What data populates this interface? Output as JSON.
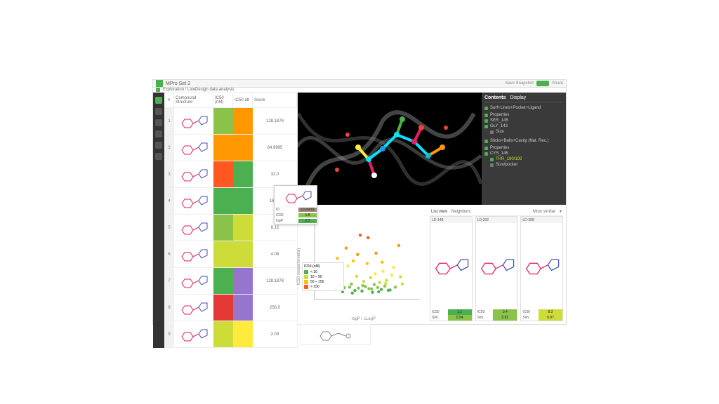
{
  "titlebar": {
    "title": "MPro Set 2",
    "save_label": "Save Snapshot",
    "share_label": "Share"
  },
  "breadcrumb": {
    "text": "Exploration / LiveDesign data analysis"
  },
  "sidebar": {
    "items": [
      "home",
      "grid",
      "scatter",
      "viewer",
      "filter",
      "settings",
      "more"
    ]
  },
  "table": {
    "columns": [
      "#",
      "Compound Structure",
      "IC50 (nM)",
      "IC50 alt",
      "Score"
    ],
    "rows": [
      {
        "idx": "1",
        "h1": "#8bc34a",
        "h2": "#ff9800",
        "val": "128.1878"
      },
      {
        "idx": "2",
        "h1": "#ff9800",
        "h2": "#ff9800",
        "val": "64.9895"
      },
      {
        "idx": "3",
        "h1": "#ff5722",
        "h2": "#4caf50",
        "val": "32.0"
      },
      {
        "idx": "4",
        "h1": "#4caf50",
        "h2": "#4caf50",
        "val": "16.25"
      },
      {
        "idx": "5",
        "h1": "#8bc34a",
        "h2": "#cddc39",
        "val": "8.12"
      },
      {
        "idx": "6",
        "h1": "#cddc39",
        "h2": "#cddc39",
        "val": "4.06"
      },
      {
        "idx": "7",
        "h1": "#4caf50",
        "h2": "#9575cd",
        "val": "128.1878"
      },
      {
        "idx": "8",
        "h1": "#e53935",
        "h2": "#9575cd",
        "val": "256.0"
      },
      {
        "idx": "9",
        "h1": "#cddc39",
        "h2": "#ffeb3b",
        "val": "2.03"
      }
    ]
  },
  "viewer_panel": {
    "tab_contents": "Contents",
    "tab_display": "Display",
    "group1": {
      "label": "Surf+Lines+Pocket+Ligand",
      "children": [
        {
          "label": "Properties",
          "on": true
        },
        {
          "label": "SER_145",
          "on": true
        },
        {
          "label": "GLY_143",
          "on": true
        },
        {
          "label": "Size",
          "on": false,
          "indent": true
        }
      ]
    },
    "group2": {
      "label": "Sticks+Balls+Cavity (Nat. Rec.)",
      "children": [
        {
          "label": "Properties",
          "on": true
        },
        {
          "label": "CYS_145",
          "on": true
        },
        {
          "label": "THR_190/192",
          "on": true,
          "indent": true,
          "yellow": true
        },
        {
          "label": "Size/pocket",
          "on": false,
          "indent": true
        }
      ]
    }
  },
  "hover_card": {
    "rows": [
      {
        "k": "ID",
        "v": "LD-0419",
        "c": "#a1887f"
      },
      {
        "k": "IC50",
        "v": "1.8",
        "c": "#8bc34a"
      },
      {
        "k": "logP",
        "v": "2.3",
        "c": "#4caf50"
      }
    ]
  },
  "scatter": {
    "type": "scatter",
    "xlabel": "logP / cLogP",
    "ylabel": "IC50 (experimental)",
    "xlim": [
      0,
      6
    ],
    "ylim": [
      0,
      300
    ],
    "background": "#ffffff",
    "point_colors": [
      "#4caf50",
      "#8bc34a",
      "#cddc39",
      "#ffeb3b",
      "#ffc107",
      "#ff9800",
      "#ff5722"
    ],
    "points": [
      [
        1.2,
        40,
        0
      ],
      [
        1.4,
        55,
        0
      ],
      [
        1.5,
        120,
        3
      ],
      [
        1.6,
        30,
        0
      ],
      [
        1.8,
        200,
        5
      ],
      [
        2.0,
        48,
        1
      ],
      [
        2.1,
        60,
        1
      ],
      [
        2.2,
        150,
        4
      ],
      [
        2.3,
        35,
        0
      ],
      [
        2.4,
        90,
        2
      ],
      [
        2.5,
        44,
        1
      ],
      [
        2.6,
        250,
        6
      ],
      [
        2.7,
        33,
        0
      ],
      [
        2.8,
        70,
        2
      ],
      [
        2.9,
        50,
        1
      ],
      [
        3.0,
        140,
        4
      ],
      [
        3.1,
        42,
        1
      ],
      [
        3.2,
        85,
        2
      ],
      [
        3.3,
        28,
        0
      ],
      [
        3.4,
        58,
        1
      ],
      [
        3.5,
        180,
        5
      ],
      [
        3.6,
        47,
        1
      ],
      [
        3.7,
        66,
        2
      ],
      [
        3.8,
        39,
        0
      ],
      [
        3.9,
        110,
        3
      ],
      [
        4.0,
        52,
        1
      ],
      [
        4.1,
        74,
        2
      ],
      [
        4.2,
        36,
        0
      ],
      [
        4.4,
        95,
        3
      ],
      [
        4.6,
        48,
        1
      ],
      [
        4.8,
        210,
        5
      ],
      [
        5.0,
        60,
        2
      ],
      [
        1.1,
        80,
        2
      ],
      [
        1.3,
        160,
        4
      ],
      [
        1.7,
        46,
        1
      ],
      [
        1.9,
        130,
        3
      ],
      [
        2.15,
        25,
        0
      ],
      [
        2.45,
        175,
        5
      ],
      [
        2.75,
        54,
        1
      ],
      [
        3.05,
        240,
        6
      ],
      [
        3.25,
        41,
        1
      ],
      [
        3.45,
        100,
        3
      ],
      [
        3.65,
        30,
        0
      ],
      [
        3.85,
        145,
        4
      ],
      [
        4.05,
        62,
        2
      ],
      [
        4.3,
        37,
        0
      ],
      [
        4.5,
        125,
        3
      ],
      [
        4.9,
        88,
        2
      ]
    ],
    "legend": {
      "title": "IC50 (nM)",
      "items": [
        {
          "c": "#4caf50",
          "t": "< 10"
        },
        {
          "c": "#cddc39",
          "t": "10 – 50"
        },
        {
          "c": "#ffc107",
          "t": "50 – 150"
        },
        {
          "c": "#ff5722",
          "t": "> 150"
        }
      ]
    }
  },
  "cards_head": {
    "tab1": "List view",
    "tab2": "Neighbors",
    "sort": "Most similar"
  },
  "cards": [
    {
      "title": "LD-148",
      "rows": [
        {
          "k": "IC50",
          "v": "1.1",
          "c": "#4caf50"
        },
        {
          "k": "Sim.",
          "v": "0.94",
          "c": "#8bc34a"
        }
      ]
    },
    {
      "title": "LD-202",
      "rows": [
        {
          "k": "IC50",
          "v": "3.4",
          "c": "#8bc34a"
        },
        {
          "k": "Sim.",
          "v": "0.91",
          "c": "#8bc34a"
        }
      ]
    },
    {
      "title": "LD-388",
      "rows": [
        {
          "k": "IC50",
          "v": "8.2",
          "c": "#cddc39"
        },
        {
          "k": "Sim.",
          "v": "0.87",
          "c": "#cddc39"
        }
      ]
    }
  ],
  "colors": {
    "accent": "#4caf50"
  }
}
